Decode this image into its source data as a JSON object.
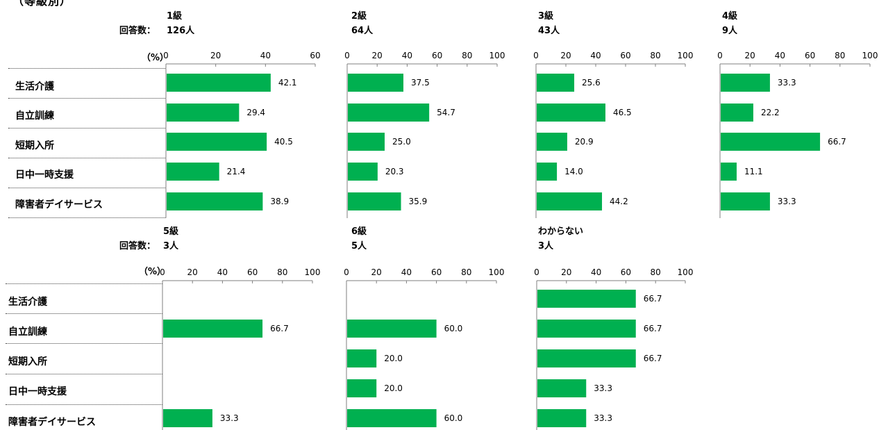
{
  "header": {
    "cut_title": "（等級別）",
    "count_label": "回答数：",
    "pct_label": "（%）"
  },
  "categories": [
    "生活介護",
    "自立訓練",
    "短期入所",
    "日中一時支援",
    "障害者デイサービス"
  ],
  "colors": {
    "bar": "#00b050",
    "axis": "#7f7f7f"
  },
  "chart_data": [
    {
      "type": "bar",
      "grade": "1級",
      "respondents": "126人",
      "xlim": [
        0,
        60
      ],
      "ticks": [
        0,
        20,
        40,
        60
      ],
      "categories": [
        "生活介護",
        "自立訓練",
        "短期入所",
        "日中一時支援",
        "障害者デイサービス"
      ],
      "values": [
        42.1,
        29.4,
        40.5,
        21.4,
        38.9
      ],
      "labels": [
        "42.1",
        "29.4",
        "40.5",
        "21.4",
        "38.9"
      ]
    },
    {
      "type": "bar",
      "grade": "2級",
      "respondents": "64人",
      "xlim": [
        0,
        100
      ],
      "ticks": [
        0,
        20,
        40,
        60,
        80,
        100
      ],
      "categories": [
        "生活介護",
        "自立訓練",
        "短期入所",
        "日中一時支援",
        "障害者デイサービス"
      ],
      "values": [
        37.5,
        54.7,
        25.0,
        20.3,
        35.9
      ],
      "labels": [
        "37.5",
        "54.7",
        "25.0",
        "20.3",
        "35.9"
      ]
    },
    {
      "type": "bar",
      "grade": "3級",
      "respondents": "43人",
      "xlim": [
        0,
        100
      ],
      "ticks": [
        0,
        20,
        40,
        60,
        80,
        100
      ],
      "categories": [
        "生活介護",
        "自立訓練",
        "短期入所",
        "日中一時支援",
        "障害者デイサービス"
      ],
      "values": [
        25.6,
        46.5,
        20.9,
        14.0,
        44.2
      ],
      "labels": [
        "25.6",
        "46.5",
        "20.9",
        "14.0",
        "44.2"
      ]
    },
    {
      "type": "bar",
      "grade": "4級",
      "respondents": "9人",
      "xlim": [
        0,
        100
      ],
      "ticks": [
        0,
        20,
        40,
        60,
        80,
        100
      ],
      "categories": [
        "生活介護",
        "自立訓練",
        "短期入所",
        "日中一時支援",
        "障害者デイサービス"
      ],
      "values": [
        33.3,
        22.2,
        66.7,
        11.1,
        33.3
      ],
      "labels": [
        "33.3",
        "22.2",
        "66.7",
        "11.1",
        "33.3"
      ]
    },
    {
      "type": "bar",
      "grade": "5級",
      "respondents": "3人",
      "xlim": [
        0,
        100
      ],
      "ticks": [
        0,
        20,
        40,
        60,
        80,
        100
      ],
      "categories": [
        "生活介護",
        "自立訓練",
        "短期入所",
        "日中一時支援",
        "障害者デイサービス"
      ],
      "values": [
        0,
        66.7,
        0,
        0,
        33.3
      ],
      "labels": [
        "",
        "66.7",
        "",
        "",
        "33.3"
      ]
    },
    {
      "type": "bar",
      "grade": "6級",
      "respondents": "5人",
      "xlim": [
        0,
        100
      ],
      "ticks": [
        0,
        20,
        40,
        60,
        80,
        100
      ],
      "categories": [
        "生活介護",
        "自立訓練",
        "短期入所",
        "日中一時支援",
        "障害者デイサービス"
      ],
      "values": [
        0,
        60.0,
        20.0,
        20.0,
        60.0
      ],
      "labels": [
        "",
        "60.0",
        "20.0",
        "20.0",
        "60.0"
      ]
    },
    {
      "type": "bar",
      "grade": "わからない",
      "respondents": "3人",
      "xlim": [
        0,
        100
      ],
      "ticks": [
        0,
        20,
        40,
        60,
        80,
        100
      ],
      "categories": [
        "生活介護",
        "自立訓練",
        "短期入所",
        "日中一時支援",
        "障害者デイサービス"
      ],
      "values": [
        66.7,
        66.7,
        66.7,
        33.3,
        33.3
      ],
      "labels": [
        "66.7",
        "66.7",
        "66.7",
        "33.3",
        "33.3"
      ]
    }
  ]
}
